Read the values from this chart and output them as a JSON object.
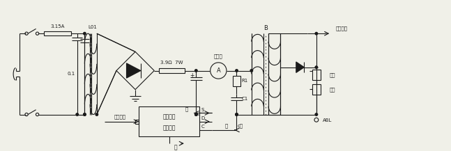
{
  "bg_color": "#f0f0e8",
  "line_color": "#1a1a1a",
  "text_color": "#1a1a1a",
  "labels": {
    "fuse": "3.15A",
    "inductor": "L01",
    "cap01": "0.1",
    "resistor": "3.9Ω  7W",
    "ammeter_label": "电流表",
    "ammeter": "A",
    "R1": "R1",
    "C1": "C1",
    "B": "B",
    "diyang": "阳极高压",
    "jubo": "聚焦",
    "jiasu": "加速",
    "ABL": "ABL",
    "black": "黑",
    "red": "红",
    "gray": "灰",
    "c_pole": "c极",
    "voltage_adjust": "电压调整",
    "power_module1": "电源模块",
    "power_module2": "开关电源",
    "S": "S",
    "D": "D",
    "C": "C"
  },
  "figsize": [
    6.47,
    2.17
  ],
  "dpi": 100
}
